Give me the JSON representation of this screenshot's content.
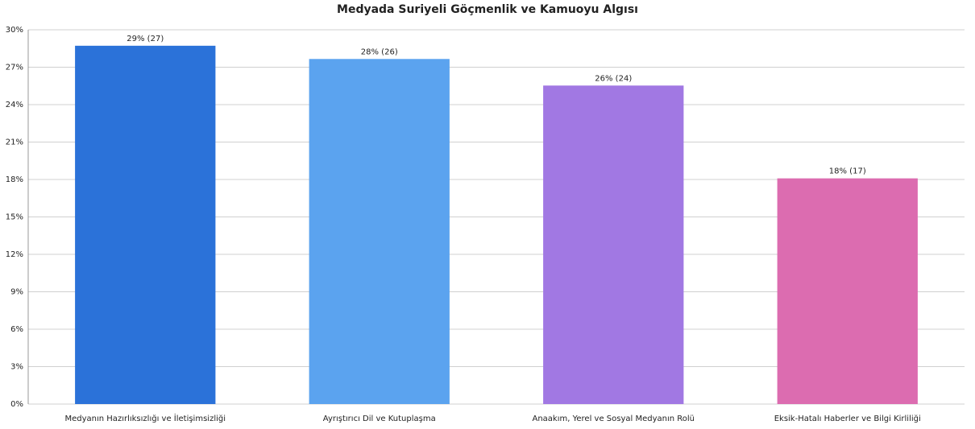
{
  "chart_data": {
    "type": "bar",
    "title": "Medyada Suriyeli Göçmenlik ve Kamuoyu Algısı",
    "categories": [
      "Medyanın Hazırlıksızlığı ve İletişimsizliği",
      "Ayrıştırıcı Dil ve Kutuplaşma",
      "Anaakım, Yerel ve Sosyal Medyanın Rolü",
      "Eksik-Hatalı Haberler ve Bilgi Kirliliği"
    ],
    "values": [
      28.72,
      27.66,
      25.53,
      18.09
    ],
    "value_labels": [
      "29% (27)",
      "28% (26)",
      "26% (24)",
      "18% (17)"
    ],
    "colors": [
      "#2b72d9",
      "#5ba3ef",
      "#a178e3",
      "#dc6cb0"
    ],
    "ylim": [
      0,
      30
    ],
    "yticks": [
      {
        "value": 0,
        "label": "0%"
      },
      {
        "value": 3,
        "label": "3%"
      },
      {
        "value": 6,
        "label": "6%"
      },
      {
        "value": 9,
        "label": "9%"
      },
      {
        "value": 12,
        "label": "12%"
      },
      {
        "value": 15,
        "label": "15%"
      },
      {
        "value": 18,
        "label": "18%"
      },
      {
        "value": 21,
        "label": "21%"
      },
      {
        "value": 24,
        "label": "24%"
      },
      {
        "value": 27,
        "label": "27%"
      },
      {
        "value": 30,
        "label": "30%"
      }
    ],
    "grid": true
  }
}
